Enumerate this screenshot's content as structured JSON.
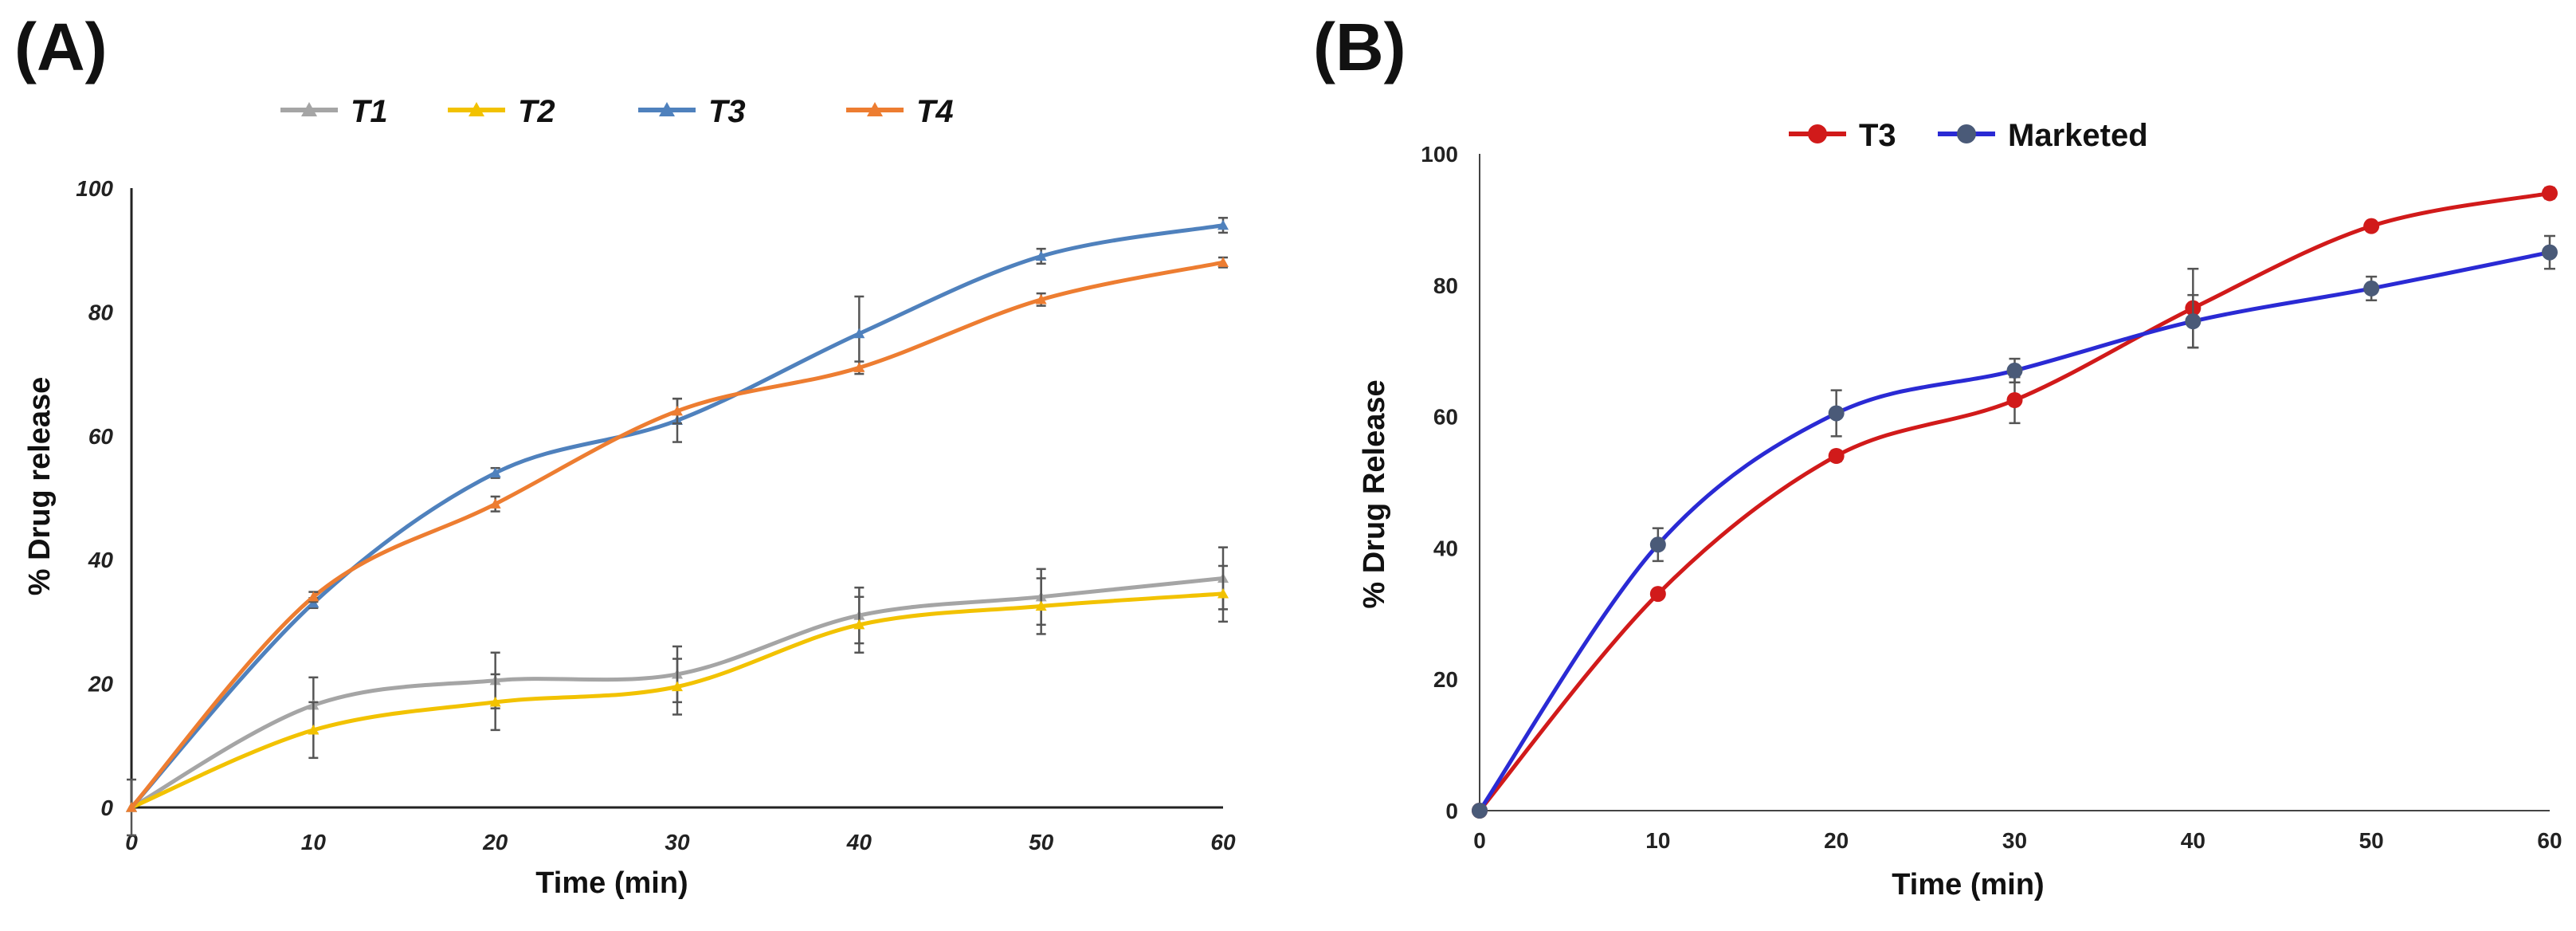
{
  "chart_data": [
    {
      "panel": "(A)",
      "type": "line",
      "xlabel": "Time (min)",
      "ylabel": "% Drug release",
      "x": [
        0,
        10,
        20,
        30,
        40,
        50,
        60
      ],
      "xlim": [
        0,
        60
      ],
      "ylim": [
        0,
        100
      ],
      "xticks": [
        0,
        10,
        20,
        30,
        40,
        50,
        60
      ],
      "yticks": [
        0,
        20,
        40,
        60,
        80,
        100
      ],
      "grid": false,
      "legend_position": "top",
      "series": [
        {
          "name": "T1",
          "color": "#a5a5a5",
          "values": [
            0,
            16.5,
            20.5,
            21.5,
            31,
            34,
            37
          ],
          "errors": [
            4.5,
            4.5,
            4.5,
            4.5,
            4.5,
            4.5,
            5
          ]
        },
        {
          "name": "T2",
          "color": "#f2c200",
          "values": [
            0,
            12.5,
            17,
            19.5,
            29.5,
            32.5,
            34.5
          ],
          "errors": [
            0,
            4.5,
            4.5,
            4.5,
            4.5,
            4.5,
            4.5
          ]
        },
        {
          "name": "T3",
          "color": "#4f81bd",
          "values": [
            0,
            33,
            54,
            62.5,
            76.5,
            89,
            94
          ],
          "errors": [
            0,
            0.8,
            0.8,
            3.5,
            6,
            1.2,
            1.2
          ]
        },
        {
          "name": "T4",
          "color": "#ed7d31",
          "values": [
            0,
            34,
            49,
            64,
            71,
            82,
            88
          ],
          "errors": [
            0,
            0.8,
            1.2,
            2,
            1,
            1,
            0.8
          ]
        }
      ]
    },
    {
      "panel": "(B)",
      "type": "line",
      "xlabel": "Time (min)",
      "ylabel": "% Drug Release",
      "x": [
        0,
        10,
        20,
        30,
        40,
        50,
        60
      ],
      "xlim": [
        0,
        60
      ],
      "ylim": [
        0,
        100
      ],
      "xticks": [
        0,
        10,
        20,
        30,
        40,
        50,
        60
      ],
      "yticks": [
        0,
        20,
        40,
        60,
        80,
        100
      ],
      "grid": false,
      "legend_position": "top",
      "series": [
        {
          "name": "T3",
          "color": "#d11a1a",
          "values": [
            0,
            33,
            54,
            62.5,
            76.5,
            89,
            94
          ],
          "errors": [
            0,
            0.5,
            0.8,
            3.5,
            6,
            0.5,
            0.8
          ]
        },
        {
          "name": "Marketed",
          "color": "#2a2ad4",
          "marker_color": "#4a5a78",
          "values": [
            0,
            40.5,
            60.5,
            67,
            74.5,
            79.5,
            85
          ],
          "errors": [
            0,
            2.5,
            3.5,
            1.8,
            4,
            1.8,
            2.5
          ]
        }
      ]
    }
  ]
}
